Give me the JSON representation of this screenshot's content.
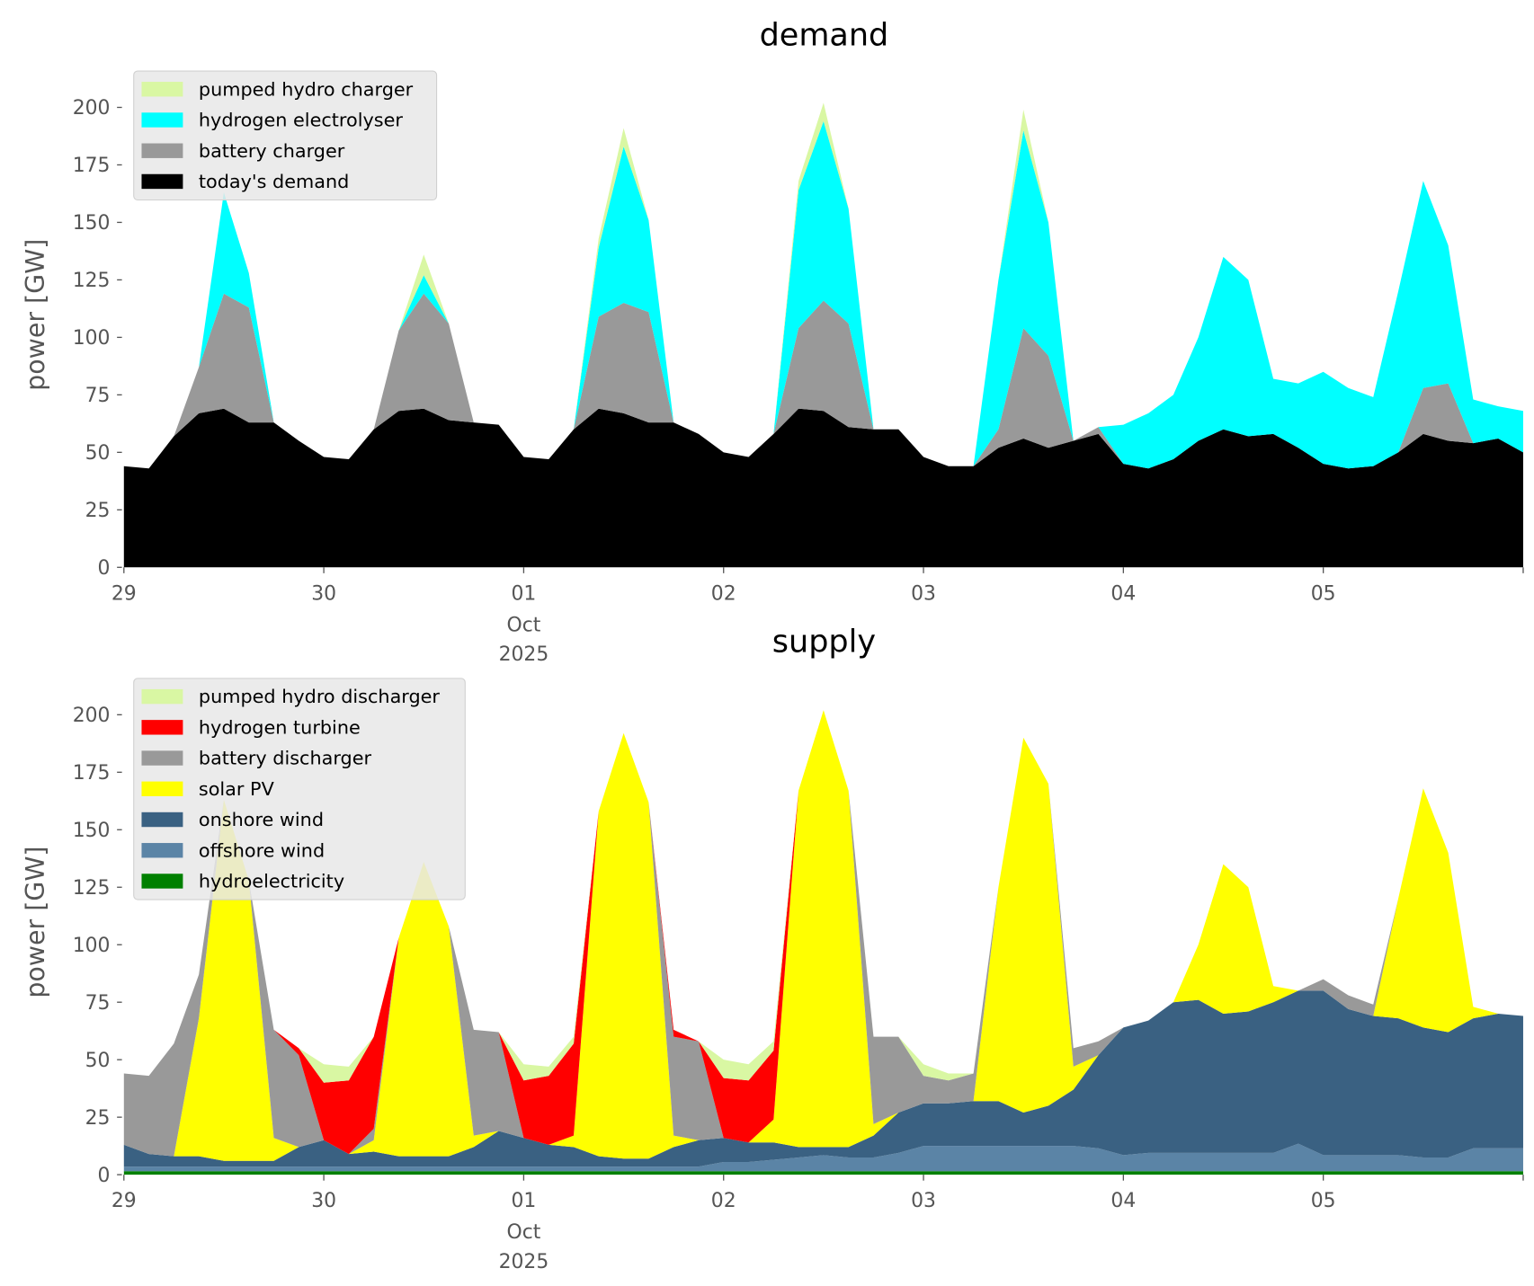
{
  "chart_data": [
    {
      "type": "area",
      "stacked": true,
      "title": "demand",
      "xlabel": "",
      "ylabel": "power [GW]",
      "ylim": [
        0,
        215
      ],
      "yticks": [
        "0",
        "25",
        "50",
        "75",
        "100",
        "125",
        "150",
        "175",
        "200"
      ],
      "ytick_values": [
        0,
        25,
        50,
        75,
        100,
        125,
        150,
        175,
        200
      ],
      "xticks": [
        "29",
        "30",
        "01",
        "02",
        "03",
        "04",
        "05"
      ],
      "xtick_sublabel": [
        "Oct",
        "2025"
      ],
      "x_step_hours": 3,
      "x_start": "2025-09-29 00:00",
      "legend_position": "top-left",
      "legend": [
        "pumped hydro charger",
        "hydrogen electrolyser",
        "battery charger",
        "today's demand"
      ],
      "series": [
        {
          "name": "today's demand",
          "color": "#000000",
          "values": [
            44,
            43,
            57,
            67,
            69,
            63,
            63,
            55,
            48,
            47,
            60,
            68,
            69,
            64,
            63,
            62,
            48,
            47,
            60,
            69,
            67,
            63,
            63,
            58,
            50,
            48,
            58,
            69,
            68,
            61,
            60,
            60,
            48,
            44,
            44,
            52,
            56,
            52,
            55,
            58,
            45,
            43,
            47,
            55,
            60,
            57,
            58,
            52,
            45,
            43,
            44,
            50,
            58,
            55,
            54,
            56,
            50
          ]
        },
        {
          "name": "battery charger",
          "color": "#999999",
          "values": [
            0,
            0,
            0,
            20,
            50,
            50,
            0,
            0,
            0,
            0,
            0,
            35,
            50,
            42,
            0,
            0,
            0,
            0,
            0,
            40,
            48,
            48,
            0,
            0,
            0,
            0,
            0,
            35,
            48,
            45,
            0,
            0,
            0,
            0,
            0,
            8,
            48,
            40,
            0,
            3,
            0,
            0,
            0,
            0,
            0,
            0,
            0,
            0,
            0,
            0,
            0,
            0,
            20,
            25,
            0,
            0,
            0
          ]
        },
        {
          "name": "hydrogen electrolyser",
          "color": "#00ffff",
          "values": [
            0,
            0,
            0,
            0,
            44,
            15,
            0,
            0,
            0,
            0,
            0,
            0,
            8,
            0,
            0,
            0,
            0,
            0,
            0,
            30,
            68,
            40,
            0,
            0,
            0,
            0,
            0,
            60,
            78,
            50,
            0,
            0,
            0,
            0,
            0,
            65,
            86,
            58,
            0,
            0,
            17,
            24,
            28,
            45,
            75,
            68,
            24,
            28,
            40,
            35,
            30,
            70,
            90,
            60,
            19,
            14,
            18
          ]
        },
        {
          "name": "pumped hydro charger",
          "color": "#d9f7a3",
          "values": [
            0,
            0,
            0,
            0,
            0,
            0,
            0,
            0,
            0,
            0,
            0,
            0,
            9,
            0,
            0,
            0,
            0,
            0,
            0,
            4,
            8,
            0,
            0,
            0,
            0,
            0,
            0,
            4,
            8,
            0,
            0,
            0,
            0,
            0,
            0,
            0,
            9,
            0,
            0,
            0,
            0,
            0,
            0,
            0,
            0,
            0,
            0,
            0,
            0,
            0,
            0,
            0,
            0,
            0,
            0,
            0,
            0
          ]
        }
      ]
    },
    {
      "type": "area",
      "stacked": true,
      "title": "supply",
      "xlabel": "",
      "ylabel": "power [GW]",
      "ylim": [
        0,
        215
      ],
      "yticks": [
        "0",
        "25",
        "50",
        "75",
        "100",
        "125",
        "150",
        "175",
        "200"
      ],
      "ytick_values": [
        0,
        25,
        50,
        75,
        100,
        125,
        150,
        175,
        200
      ],
      "xticks": [
        "29",
        "30",
        "01",
        "02",
        "03",
        "04",
        "05"
      ],
      "xtick_sublabel": [
        "Oct",
        "2025"
      ],
      "x_step_hours": 3,
      "x_start": "2025-09-29 00:00",
      "legend_position": "top-left",
      "legend": [
        "pumped hydro discharger",
        "hydrogen turbine",
        "battery discharger",
        "solar PV",
        "onshore wind",
        "offshore wind",
        "hydroelectricity"
      ],
      "series": [
        {
          "name": "hydroelectricity",
          "color": "#008000",
          "values": [
            1.5,
            1.5,
            1.5,
            1.5,
            1.5,
            1.5,
            1.5,
            1.5,
            1.5,
            1.5,
            1.5,
            1.5,
            1.5,
            1.5,
            1.5,
            1.5,
            1.5,
            1.5,
            1.5,
            1.5,
            1.5,
            1.5,
            1.5,
            1.5,
            1.5,
            1.5,
            1.5,
            1.5,
            1.5,
            1.5,
            1.5,
            1.5,
            1.5,
            1.5,
            1.5,
            1.5,
            1.5,
            1.5,
            1.5,
            1.5,
            1.5,
            1.5,
            1.5,
            1.5,
            1.5,
            1.5,
            1.5,
            1.5,
            1.5,
            1.5,
            1.5,
            1.5,
            1.5,
            1.5,
            1.5,
            1.5,
            1.5
          ]
        },
        {
          "name": "offshore wind",
          "color": "#5b84a6",
          "values": [
            2,
            2,
            2,
            2,
            2,
            2,
            2,
            2,
            2,
            2,
            2,
            2,
            2,
            2,
            2,
            2,
            2,
            2,
            2,
            2,
            2,
            2,
            2,
            2,
            4,
            4,
            5,
            6,
            7,
            6,
            6,
            8,
            11,
            11,
            11,
            11,
            11,
            11,
            11,
            10,
            7,
            8,
            8,
            8,
            8,
            8,
            8,
            12,
            7,
            7,
            7,
            7,
            6,
            6,
            10,
            10,
            10
          ]
        },
        {
          "name": "onshore wind",
          "color": "#3a6182",
          "values": [
            9.5,
            5.5,
            4.5,
            4.5,
            2.5,
            2.5,
            2.5,
            8.5,
            11.5,
            5.5,
            6.5,
            4.5,
            4.5,
            4.5,
            8.5,
            15.5,
            12.5,
            9.5,
            8.5,
            4.5,
            3.5,
            3.5,
            8.5,
            11.5,
            10.5,
            8.5,
            7.5,
            4.5,
            3.5,
            4.5,
            9.5,
            17.5,
            18.5,
            18.5,
            19.5,
            19.5,
            14.5,
            17.5,
            24.5,
            40.5,
            55.5,
            57.5,
            65.5,
            66.5,
            60.5,
            61.5,
            65.5,
            66.5,
            71.5,
            63.5,
            60.5,
            59.5,
            56.5,
            54.5,
            56.5,
            58.5,
            57.5
          ]
        },
        {
          "name": "solar PV",
          "color": "#ffff00",
          "values": [
            0,
            0,
            0,
            60,
            157,
            122,
            10,
            0,
            0,
            0,
            5,
            95,
            128,
            100,
            5,
            0,
            0,
            0,
            5,
            150,
            185,
            155,
            5,
            0,
            0,
            0,
            10,
            155,
            190,
            155,
            5,
            0,
            0,
            0,
            0,
            93,
            163,
            140,
            10,
            0,
            0,
            0,
            0,
            24,
            65,
            54,
            7,
            0,
            0,
            0,
            0,
            52,
            104,
            78,
            5,
            0,
            0
          ]
        },
        {
          "name": "battery discharger",
          "color": "#999999",
          "values": [
            31,
            34,
            49,
            19,
            0,
            0,
            47,
            40,
            0,
            0,
            5,
            0,
            0,
            0,
            46,
            43,
            0,
            0,
            0,
            0,
            0,
            0,
            43,
            43,
            0,
            0,
            0,
            0,
            0,
            0,
            38,
            33,
            12,
            10,
            12,
            0,
            0,
            0,
            8,
            6,
            0,
            0,
            0,
            0,
            0,
            0,
            0,
            0,
            5,
            6,
            5,
            0,
            0,
            0,
            0,
            0,
            0
          ]
        },
        {
          "name": "hydrogen turbine",
          "color": "#ff0000",
          "values": [
            0,
            0,
            0,
            0,
            0,
            0,
            0,
            3,
            25,
            32,
            40,
            0,
            0,
            0,
            0,
            0,
            25,
            30,
            40,
            0,
            0,
            0,
            3,
            0,
            26,
            27,
            30,
            0,
            0,
            0,
            0,
            0,
            0,
            0,
            0,
            0,
            0,
            0,
            0,
            0,
            0,
            0,
            0,
            0,
            0,
            0,
            0,
            0,
            0,
            0,
            0,
            0,
            0,
            0,
            0,
            0,
            0
          ]
        },
        {
          "name": "pumped hydro discharger",
          "color": "#d9f7a3",
          "values": [
            0,
            0,
            0,
            0,
            0,
            0,
            0,
            0,
            8,
            6,
            0,
            0,
            0,
            0,
            0,
            0,
            7,
            4,
            3,
            0,
            0,
            0,
            0,
            0,
            8,
            7,
            4,
            0,
            0,
            0,
            0,
            0,
            5,
            3,
            0,
            0,
            0,
            0,
            0,
            0,
            0,
            0,
            0,
            0,
            0,
            0,
            0,
            0,
            0,
            0,
            0,
            0,
            0,
            0,
            0,
            0,
            0
          ]
        }
      ]
    }
  ]
}
